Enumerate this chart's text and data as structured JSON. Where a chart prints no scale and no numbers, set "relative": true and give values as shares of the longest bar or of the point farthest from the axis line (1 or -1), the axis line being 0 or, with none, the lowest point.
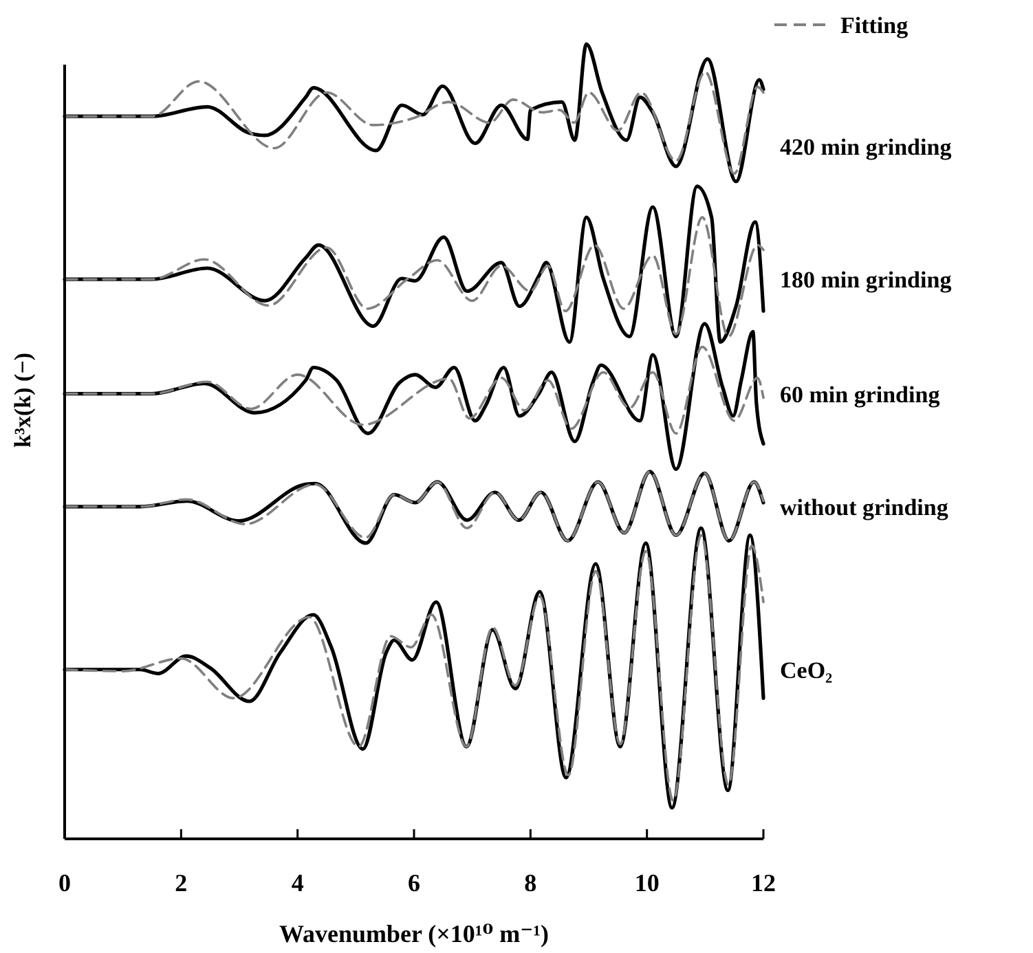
{
  "chart_data": {
    "type": "line",
    "relative": true,
    "xlabel": "Wavenumber (×10¹⁰ m⁻¹)",
    "ylabel": "k³x(k) (−)",
    "xlim": [
      0,
      12
    ],
    "xticks": [
      0,
      2,
      4,
      6,
      8,
      10,
      12
    ],
    "legend": "top right",
    "grid": false,
    "marker": "none",
    "series": [
      {
        "name": "420 min grinding",
        "color": "#000000",
        "line_style": "solid",
        "x": [
          0,
          1.5,
          2.45,
          3.17,
          3.44,
          4.14,
          4.27,
          5.35,
          5.79,
          6.15,
          6.49,
          7.05,
          7.5,
          7.95,
          8.0,
          8.54,
          8.76,
          8.96,
          9.23,
          9.65,
          9.88,
          10.1,
          10.5,
          11.04,
          11.53,
          11.93,
          12
        ],
        "values": [
          0.909,
          0.909,
          0.921,
          0.888,
          0.885,
          0.933,
          0.945,
          0.866,
          0.923,
          0.911,
          0.947,
          0.875,
          0.923,
          0.88,
          0.917,
          0.927,
          0.879,
          1.0,
          0.939,
          0.879,
          0.933,
          0.914,
          0.846,
          0.981,
          0.827,
          0.955,
          0.943
        ]
      },
      {
        "name": "Fitting",
        "color": "#808080",
        "line_style": "dashed",
        "x": [
          0,
          1.5,
          2.3,
          3.6,
          4.5,
          5.3,
          6.0,
          6.6,
          7.3,
          7.7,
          8.2,
          8.5,
          8.75,
          9.0,
          9.5,
          9.9,
          10.5,
          11.0,
          11.5,
          11.9,
          12
        ],
        "values": [
          0.909,
          0.909,
          0.953,
          0.869,
          0.939,
          0.898,
          0.907,
          0.927,
          0.901,
          0.93,
          0.914,
          0.917,
          0.901,
          0.939,
          0.891,
          0.939,
          0.853,
          0.965,
          0.837,
          0.946,
          0.939
        ]
      },
      {
        "name": "180 min grinding",
        "color": "#000000",
        "line_style": "solid",
        "x": [
          0,
          1.5,
          2.45,
          3.44,
          4.14,
          4.36,
          5.3,
          5.79,
          6.02,
          6.51,
          6.91,
          7.5,
          7.81,
          8.15,
          8.27,
          8.67,
          8.96,
          9.25,
          9.7,
          10.1,
          10.5,
          10.86,
          11.11,
          11.26,
          11.53,
          11.86,
          12
        ],
        "values": [
          0.704,
          0.704,
          0.718,
          0.677,
          0.731,
          0.747,
          0.645,
          0.705,
          0.702,
          0.757,
          0.689,
          0.725,
          0.67,
          0.709,
          0.725,
          0.625,
          0.782,
          0.705,
          0.632,
          0.795,
          0.632,
          0.821,
          0.782,
          0.625,
          0.67,
          0.776,
          0.664
        ]
      },
      {
        "color": "#808080",
        "line_style": "dashed",
        "x": [
          0,
          1.5,
          2.4,
          3.5,
          4.5,
          5.2,
          5.9,
          6.4,
          7.0,
          7.5,
          8.0,
          8.3,
          8.6,
          9.1,
          9.6,
          10.1,
          10.5,
          10.95,
          11.4,
          11.9,
          12
        ],
        "values": [
          0.704,
          0.704,
          0.729,
          0.671,
          0.744,
          0.667,
          0.705,
          0.728,
          0.677,
          0.721,
          0.689,
          0.721,
          0.664,
          0.747,
          0.667,
          0.734,
          0.635,
          0.782,
          0.632,
          0.747,
          0.741
        ]
      },
      {
        "name": "60 min grinding",
        "color": "#000000",
        "line_style": "solid",
        "x": [
          0,
          1.5,
          2.4,
          3.26,
          4.14,
          4.27,
          4.67,
          5.21,
          5.75,
          6.02,
          6.37,
          6.69,
          7.05,
          7.23,
          7.54,
          7.81,
          8.15,
          8.36,
          8.76,
          9.07,
          9.21,
          9.88,
          10.1,
          10.5,
          10.99,
          11.3,
          11.48,
          11.62,
          11.82,
          11.88,
          12
        ],
        "values": [
          0.56,
          0.56,
          0.573,
          0.536,
          0.577,
          0.593,
          0.577,
          0.51,
          0.574,
          0.584,
          0.568,
          0.593,
          0.526,
          0.545,
          0.593,
          0.532,
          0.561,
          0.587,
          0.5,
          0.574,
          0.596,
          0.526,
          0.609,
          0.465,
          0.648,
          0.568,
          0.532,
          0.577,
          0.638,
          0.548,
          0.497
        ]
      },
      {
        "color": "#808080",
        "line_style": "dashed",
        "x": [
          0,
          1.5,
          2.45,
          3.2,
          4.0,
          5.12,
          6.6,
          6.95,
          7.5,
          7.9,
          8.3,
          8.7,
          9.25,
          9.7,
          10.1,
          10.5,
          10.95,
          11.5,
          11.9,
          12
        ],
        "values": [
          0.56,
          0.56,
          0.575,
          0.541,
          0.584,
          0.521,
          0.579,
          0.529,
          0.58,
          0.539,
          0.577,
          0.516,
          0.587,
          0.542,
          0.587,
          0.51,
          0.619,
          0.526,
          0.58,
          0.555
        ]
      },
      {
        "name": "without grinding",
        "color": "#000000",
        "line_style": "solid",
        "x": [
          0,
          1.3,
          2.1,
          2.99,
          4.14,
          4.31,
          5.17,
          5.66,
          6.02,
          6.4,
          6.91,
          7.39,
          7.8,
          8.18,
          8.64,
          9.16,
          9.61,
          10.05,
          10.5,
          10.99,
          11.41,
          11.84,
          12
        ],
        "values": [
          0.418,
          0.418,
          0.425,
          0.4,
          0.446,
          0.447,
          0.372,
          0.433,
          0.423,
          0.449,
          0.401,
          0.436,
          0.401,
          0.436,
          0.375,
          0.449,
          0.385,
          0.462,
          0.382,
          0.46,
          0.375,
          0.449,
          0.423
        ]
      },
      {
        "color": "#808080",
        "line_style": "dashed",
        "x": [
          0,
          1.3,
          2.1,
          3.1,
          4.3,
          5.17,
          5.66,
          6.02,
          6.4,
          6.91,
          7.39,
          7.8,
          8.18,
          8.64,
          9.16,
          9.61,
          10.05,
          10.5,
          10.99,
          11.41,
          11.84,
          12
        ],
        "values": [
          0.418,
          0.418,
          0.427,
          0.396,
          0.446,
          0.379,
          0.433,
          0.423,
          0.449,
          0.391,
          0.436,
          0.401,
          0.436,
          0.375,
          0.449,
          0.385,
          0.462,
          0.382,
          0.46,
          0.375,
          0.449,
          0.425
        ]
      },
      {
        "name": "CeO₂",
        "color": "#000000",
        "line_style": "solid",
        "x": [
          0,
          1.3,
          1.6,
          2.09,
          2.5,
          3.17,
          3.7,
          4.27,
          4.58,
          5.12,
          5.52,
          5.66,
          5.97,
          6.38,
          6.9,
          7.35,
          7.74,
          8.16,
          8.61,
          9.12,
          9.54,
          9.98,
          10.43,
          10.93,
          11.39,
          11.77,
          12
        ],
        "values": [
          0.213,
          0.213,
          0.208,
          0.23,
          0.215,
          0.173,
          0.234,
          0.282,
          0.241,
          0.113,
          0.234,
          0.25,
          0.225,
          0.298,
          0.116,
          0.263,
          0.189,
          0.311,
          0.077,
          0.346,
          0.116,
          0.372,
          0.039,
          0.391,
          0.061,
          0.382,
          0.177
        ]
      },
      {
        "color": "#808080",
        "line_style": "dashed",
        "x": [
          0,
          1.0,
          2.0,
          2.9,
          4.2,
          5.05,
          5.6,
          5.95,
          6.3,
          6.9,
          7.35,
          7.74,
          8.16,
          8.65,
          9.12,
          9.54,
          9.98,
          10.45,
          10.93,
          11.4,
          11.8,
          12
        ],
        "values": [
          0.213,
          0.211,
          0.227,
          0.177,
          0.279,
          0.116,
          0.255,
          0.241,
          0.282,
          0.116,
          0.266,
          0.193,
          0.305,
          0.08,
          0.337,
          0.119,
          0.362,
          0.048,
          0.382,
          0.068,
          0.369,
          0.298
        ]
      }
    ]
  }
}
